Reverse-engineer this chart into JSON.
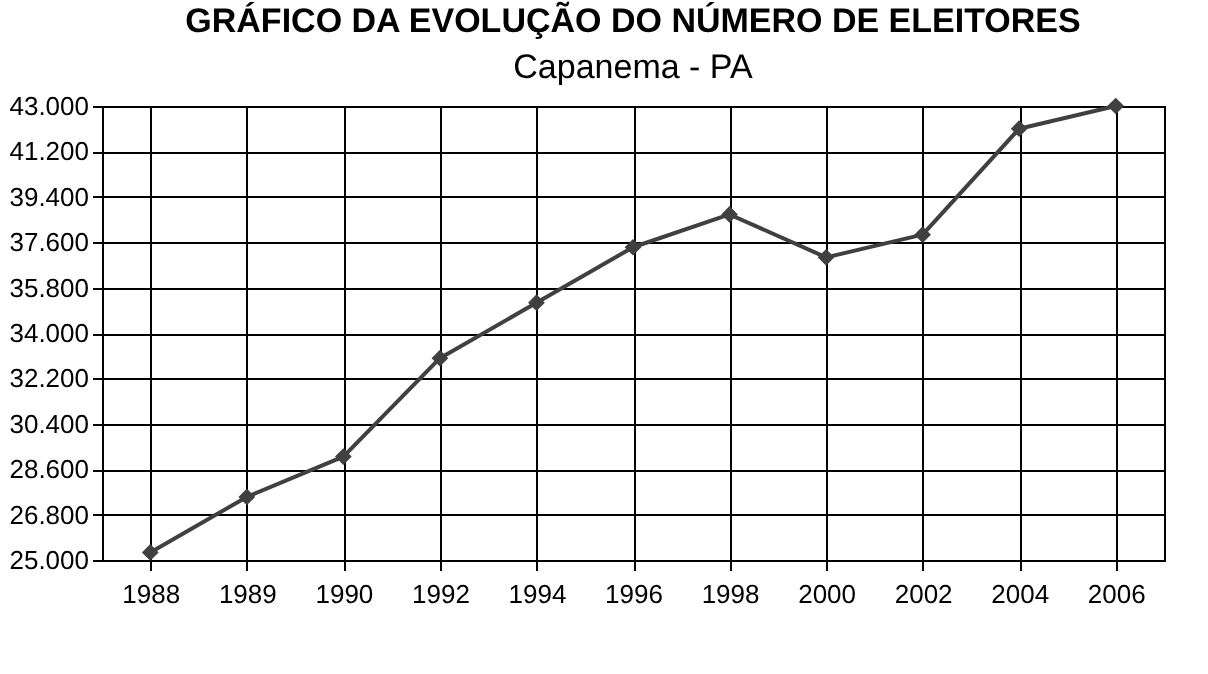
{
  "chart_data": {
    "type": "line",
    "title": "GRÁFICO DA EVOLUÇÃO DO NÚMERO DE ELEITORES",
    "subtitle": "Capanema - PA",
    "categories": [
      "1988",
      "1989",
      "1990",
      "1992",
      "1994",
      "1996",
      "1998",
      "2000",
      "2002",
      "2004",
      "2006"
    ],
    "series": [
      {
        "color": "#404040",
        "values": [
          25300,
          27500,
          29100,
          33000,
          35200,
          37400,
          38700,
          37000,
          37900,
          42100,
          43000
        ]
      }
    ],
    "ylim": [
      25000,
      43000
    ],
    "yticks": [
      {
        "value": 25000,
        "label": "25.000"
      },
      {
        "value": 26800,
        "label": "26.800"
      },
      {
        "value": 28600,
        "label": "28.600"
      },
      {
        "value": 30400,
        "label": "30.400"
      },
      {
        "value": 32200,
        "label": "32.200"
      },
      {
        "value": 34000,
        "label": "34.000"
      },
      {
        "value": 35800,
        "label": "35.800"
      },
      {
        "value": 37600,
        "label": "37.600"
      },
      {
        "value": 39400,
        "label": "39.400"
      },
      {
        "value": 41200,
        "label": "41.200"
      },
      {
        "value": 43000,
        "label": "43.000"
      }
    ],
    "grid": true,
    "marker": "diamond",
    "line_style": "solid"
  }
}
